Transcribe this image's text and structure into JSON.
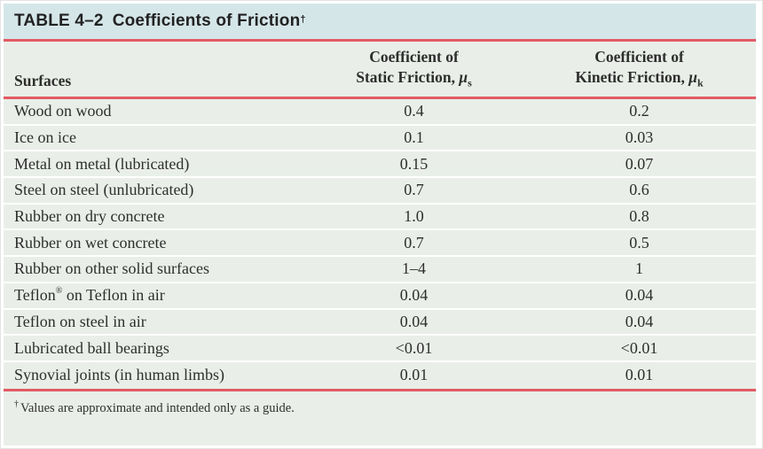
{
  "table": {
    "label": "TABLE 4–2",
    "title": "Coefficients of Friction",
    "title_marker": "†"
  },
  "header": {
    "surfaces": "Surfaces",
    "static": {
      "line1": "Coefficient of",
      "line2_prefix": "Static Friction, ",
      "mu": "μ",
      "sub": "s"
    },
    "kinetic": {
      "line1": "Coefficient of",
      "line2_prefix": "Kinetic Friction, ",
      "mu": "μ",
      "sub": "k"
    }
  },
  "rows": [
    {
      "surface": "Wood on wood",
      "static": "0.4",
      "kinetic": "0.2"
    },
    {
      "surface": "Ice on ice",
      "static": "0.1",
      "kinetic": "0.03"
    },
    {
      "surface": "Metal on metal (lubricated)",
      "static": "0.15",
      "kinetic": "0.07"
    },
    {
      "surface": "Steel on steel (unlubricated)",
      "static": "0.7",
      "kinetic": "0.6"
    },
    {
      "surface": "Rubber on dry concrete",
      "static": "1.0",
      "kinetic": "0.8"
    },
    {
      "surface": "Rubber on wet concrete",
      "static": "0.7",
      "kinetic": "0.5"
    },
    {
      "surface": "Rubber on other solid surfaces",
      "static": "1–4",
      "kinetic": "1"
    },
    {
      "surface": "Teflon",
      "surface_sup": "®",
      "surface_after": " on Teflon in air",
      "static": "0.04",
      "kinetic": "0.04"
    },
    {
      "surface": "Teflon on steel in air",
      "static": "0.04",
      "kinetic": "0.04"
    },
    {
      "surface": "Lubricated ball bearings",
      "static": "<0.01",
      "kinetic": "<0.01"
    },
    {
      "surface": "Synovial joints (in human limbs)",
      "static": "0.01",
      "kinetic": "0.01"
    }
  ],
  "footnote": {
    "marker": "†",
    "text": "Values are approximate and intended only as a guide."
  },
  "colors": {
    "title_bar_background": "#d5e6e9",
    "body_background": "#e9efe8",
    "rule_red": "#e25a63",
    "text": "#2e2e2e"
  }
}
